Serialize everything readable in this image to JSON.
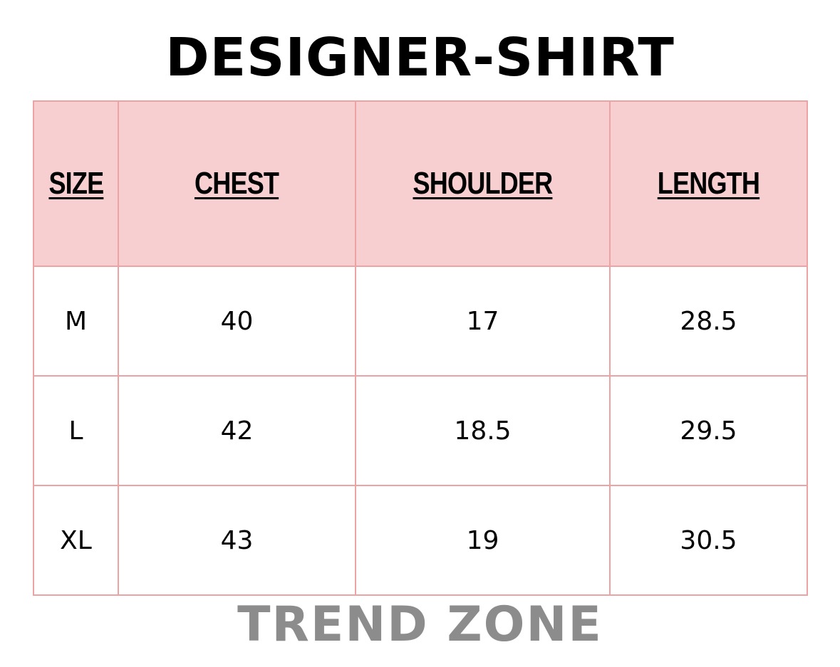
{
  "title": "DESIGNER-SHIRT",
  "table": {
    "headers": [
      "SIZE",
      "CHEST",
      "SHOULDER",
      "LENGTH"
    ],
    "rows": [
      [
        "M",
        "40",
        "17",
        "28.5"
      ],
      [
        "L",
        "42",
        "18.5",
        "29.5"
      ],
      [
        "XL",
        "43",
        "19",
        "30.5"
      ]
    ]
  },
  "footer": "TREND ZONE",
  "colors": {
    "header_fill": "#f7cfd0",
    "border": "#eca3a3",
    "footer_text": "#8c8c8c"
  }
}
